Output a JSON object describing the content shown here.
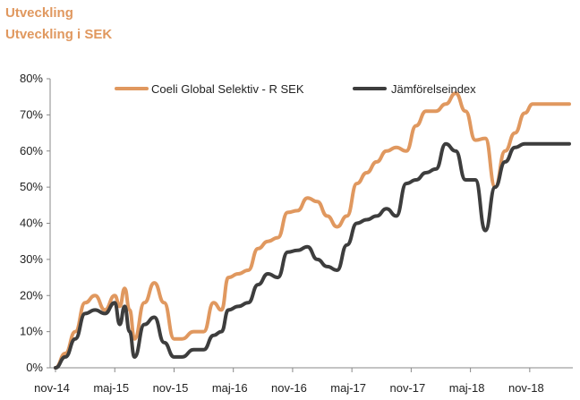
{
  "header": {
    "title": "Utveckling",
    "subtitle": "Utveckling i SEK"
  },
  "chart_data": {
    "type": "line",
    "title": "Utveckling",
    "subtitle": "Utveckling i SEK",
    "xlabel": "",
    "ylabel": "",
    "x_tick_labels": [
      "nov-14",
      "maj-15",
      "nov-15",
      "maj-16",
      "nov-16",
      "maj-17",
      "nov-17",
      "maj-18",
      "nov-18"
    ],
    "y_tick_labels": [
      "0%",
      "10%",
      "20%",
      "30%",
      "40%",
      "50%",
      "60%",
      "70%",
      "80%"
    ],
    "ylim": [
      0,
      80
    ],
    "x_unit": "months since nov-14",
    "xlim": [
      0,
      52
    ],
    "grid": false,
    "legend_position": "top",
    "colors": {
      "fund": "#e0985f",
      "index": "#3d3d3d",
      "axis": "#888888"
    },
    "series": [
      {
        "name": "Coeli Global Selektiv - R SEK",
        "key": "fund",
        "x": [
          0,
          1,
          2,
          3,
          4,
          5,
          6,
          6.5,
          7,
          7.5,
          8,
          9,
          10,
          11,
          12,
          12.8,
          14,
          15,
          16,
          16.8,
          17.5,
          18.5,
          19.5,
          20.5,
          21.5,
          22.5,
          23.5,
          24.5,
          25.5,
          26.5,
          27.5,
          28.5,
          29.5,
          30.5,
          31.5,
          32.5,
          33.5,
          34.5,
          35.5,
          36.5,
          37.5,
          38.5,
          39.5,
          40.5,
          41.5,
          42.5,
          43.5,
          44.5,
          45.5,
          46.5,
          47.5,
          48.3,
          49,
          50,
          51,
          52
        ],
        "values": [
          0,
          4,
          10,
          18,
          20,
          16,
          20,
          17,
          22,
          16,
          8,
          18,
          23.5,
          18,
          8,
          8,
          10,
          10,
          18,
          16,
          25,
          26,
          27,
          33,
          35,
          36,
          43,
          43.5,
          47,
          46,
          42,
          39,
          42,
          51,
          54,
          57,
          60,
          61,
          60,
          67,
          71,
          71,
          73,
          76,
          71,
          63,
          63.5,
          50,
          60,
          65,
          70.5,
          73,
          73,
          73,
          73,
          73
        ]
      },
      {
        "name": "Jämförelseindex",
        "key": "index",
        "x": [
          0,
          1,
          2,
          3,
          4,
          5,
          6,
          6.5,
          7,
          7.5,
          8,
          9,
          10,
          11,
          12,
          12.8,
          14,
          15,
          16,
          16.8,
          17.5,
          18.5,
          19.5,
          20.5,
          21.5,
          22.5,
          23.5,
          24.5,
          25.5,
          26.5,
          27.5,
          28.5,
          29.5,
          30.5,
          31.5,
          32.5,
          33.5,
          34.5,
          35.5,
          36.5,
          37.5,
          38.5,
          39.5,
          40.5,
          41.5,
          42.5,
          43.5,
          44.5,
          45.5,
          46.5,
          47.5,
          48.3,
          49,
          50,
          51,
          52
        ],
        "values": [
          0,
          3,
          8,
          15,
          16,
          15,
          18,
          12,
          17,
          10,
          3,
          12,
          14,
          7,
          3,
          3,
          5,
          5,
          9,
          10,
          16,
          17,
          18,
          23,
          26,
          25,
          32,
          32.5,
          33.5,
          30,
          28,
          27,
          34,
          40,
          41,
          42,
          44,
          42,
          51,
          52,
          54,
          55,
          62,
          60,
          52,
          52,
          38,
          50,
          57,
          61,
          62,
          62,
          62,
          62,
          62,
          62
        ]
      }
    ]
  }
}
